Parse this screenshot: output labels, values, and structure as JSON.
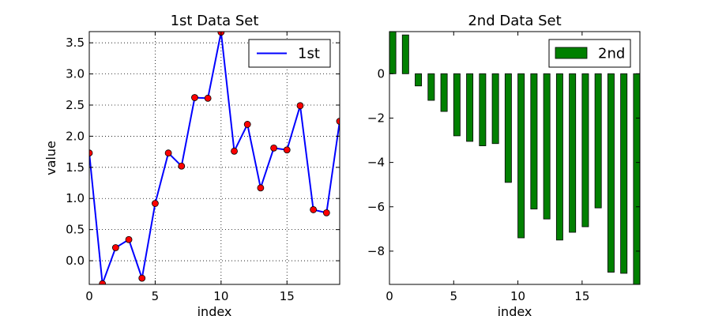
{
  "chart_data": [
    {
      "type": "line",
      "title": "1st Data Set",
      "xlabel": "index",
      "ylabel": "value",
      "xlim": [
        0,
        19
      ],
      "ylim": [
        -0.38,
        3.68
      ],
      "xticks": [
        0,
        5,
        10,
        15
      ],
      "xtick_labels": [
        "0",
        "5",
        "10",
        "15"
      ],
      "yticks": [
        0.0,
        0.5,
        1.0,
        1.5,
        2.0,
        2.5,
        3.0,
        3.5
      ],
      "ytick_labels": [
        "0.0",
        "0.5",
        "1.0",
        "1.5",
        "2.0",
        "2.5",
        "3.0",
        "3.5"
      ],
      "grid": true,
      "legend_position": "top-right",
      "series": [
        {
          "name": "1st",
          "line_color": "#0000ff",
          "marker_color": "#ff0000",
          "x": [
            0,
            1,
            2,
            3,
            4,
            5,
            6,
            7,
            8,
            9,
            10,
            11,
            12,
            13,
            14,
            15,
            16,
            17,
            18,
            19
          ],
          "values": [
            1.73,
            -0.37,
            0.21,
            0.34,
            -0.28,
            0.92,
            1.73,
            1.52,
            2.62,
            2.61,
            3.67,
            1.76,
            2.19,
            1.17,
            1.81,
            1.78,
            2.49,
            0.82,
            0.77,
            2.24
          ]
        }
      ]
    },
    {
      "type": "bar",
      "title": "2nd Data Set",
      "xlabel": "index",
      "ylabel": "",
      "xlim": [
        0,
        19.5
      ],
      "ylim": [
        -9.5,
        1.9
      ],
      "xticks": [
        0,
        5,
        10,
        15
      ],
      "xtick_labels": [
        "0",
        "5",
        "10",
        "15"
      ],
      "yticks": [
        0,
        -2,
        -4,
        -6,
        -8
      ],
      "ytick_labels": [
        "0",
        "−2",
        "−4",
        "−6",
        "−8"
      ],
      "grid": false,
      "legend_position": "top-right",
      "series": [
        {
          "name": "2nd",
          "color": "#008000",
          "x": [
            0,
            1,
            2,
            3,
            4,
            5,
            6,
            7,
            8,
            9,
            10,
            11,
            12,
            13,
            14,
            15,
            16,
            17,
            18,
            19
          ],
          "values": [
            1.9,
            1.75,
            -0.55,
            -1.2,
            -1.7,
            -2.8,
            -3.05,
            -3.25,
            -3.15,
            -4.9,
            -7.4,
            -6.1,
            -6.55,
            -7.5,
            -7.15,
            -6.9,
            -6.05,
            -8.95,
            -9.0,
            -9.5
          ]
        }
      ]
    }
  ]
}
